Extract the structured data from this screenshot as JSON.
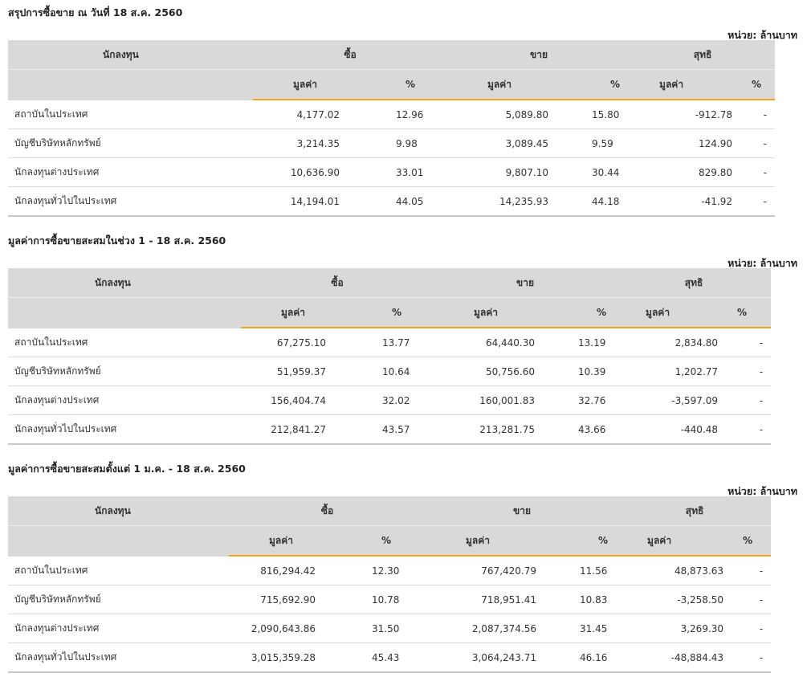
{
  "unit_label": "หน่วย: ล้านบาท",
  "headers": {
    "investor": "นักลงทุน",
    "buy": "ซื้อ",
    "sell": "ขาย",
    "net": "สุทธิ",
    "value": "มูลค่า",
    "pct": "%"
  },
  "colors": {
    "accent": "#f3a51b",
    "header_bg": "#d9d9d9",
    "positive": "#2e8b2e",
    "negative": "#e02020"
  },
  "sections": [
    {
      "title": "สรุปการซื้อขาย ณ วันที่ 18 ส.ค. 2560",
      "rows": [
        {
          "name": "สถาบันในประเทศ",
          "buy_value": "4,177.02",
          "buy_pct": "12.96",
          "sell_value": "5,089.80",
          "sell_pct": "15.80",
          "net_value": "-912.78",
          "net_pct": "-"
        },
        {
          "name": "บัญชีบริษัทหลักทรัพย์",
          "buy_value": "3,214.35",
          "buy_pct": "9.98",
          "sell_value": "3,089.45",
          "sell_pct": "9.59",
          "net_value": "124.90",
          "net_pct": "-"
        },
        {
          "name": "นักลงทุนต่างประเทศ",
          "buy_value": "10,636.90",
          "buy_pct": "33.01",
          "sell_value": "9,807.10",
          "sell_pct": "30.44",
          "net_value": "829.80",
          "net_pct": "-"
        },
        {
          "name": "นักลงทุนทั่วไปในประเทศ",
          "buy_value": "14,194.01",
          "buy_pct": "44.05",
          "sell_value": "14,235.93",
          "sell_pct": "44.18",
          "net_value": "-41.92",
          "net_pct": "-"
        }
      ]
    },
    {
      "title": "มูลค่าการซื้อขายสะสมในช่วง 1 - 18 ส.ค. 2560",
      "rows": [
        {
          "name": "สถาบันในประเทศ",
          "buy_value": "67,275.10",
          "buy_pct": "13.77",
          "sell_value": "64,440.30",
          "sell_pct": "13.19",
          "net_value": "2,834.80",
          "net_pct": "-"
        },
        {
          "name": "บัญชีบริษัทหลักทรัพย์",
          "buy_value": "51,959.37",
          "buy_pct": "10.64",
          "sell_value": "50,756.60",
          "sell_pct": "10.39",
          "net_value": "1,202.77",
          "net_pct": "-"
        },
        {
          "name": "นักลงทุนต่างประเทศ",
          "buy_value": "156,404.74",
          "buy_pct": "32.02",
          "sell_value": "160,001.83",
          "sell_pct": "32.76",
          "net_value": "-3,597.09",
          "net_pct": "-"
        },
        {
          "name": "นักลงทุนทั่วไปในประเทศ",
          "buy_value": "212,841.27",
          "buy_pct": "43.57",
          "sell_value": "213,281.75",
          "sell_pct": "43.66",
          "net_value": "-440.48",
          "net_pct": "-"
        }
      ]
    },
    {
      "title": "มูลค่าการซื้อขายสะสมตั้งแต่ 1 ม.ค. - 18 ส.ค. 2560",
      "rows": [
        {
          "name": "สถาบันในประเทศ",
          "buy_value": "816,294.42",
          "buy_pct": "12.30",
          "sell_value": "767,420.79",
          "sell_pct": "11.56",
          "net_value": "48,873.63",
          "net_pct": "-"
        },
        {
          "name": "บัญชีบริษัทหลักทรัพย์",
          "buy_value": "715,692.90",
          "buy_pct": "10.78",
          "sell_value": "718,951.41",
          "sell_pct": "10.83",
          "net_value": "-3,258.50",
          "net_pct": "-"
        },
        {
          "name": "นักลงทุนต่างประเทศ",
          "buy_value": "2,090,643.86",
          "buy_pct": "31.50",
          "sell_value": "2,087,374.56",
          "sell_pct": "31.45",
          "net_value": "3,269.30",
          "net_pct": "-"
        },
        {
          "name": "นักลงทุนทั่วไปในประเทศ",
          "buy_value": "3,015,359.28",
          "buy_pct": "45.43",
          "sell_value": "3,064,243.71",
          "sell_pct": "46.16",
          "net_value": "-48,884.43",
          "net_pct": "-"
        }
      ]
    }
  ]
}
